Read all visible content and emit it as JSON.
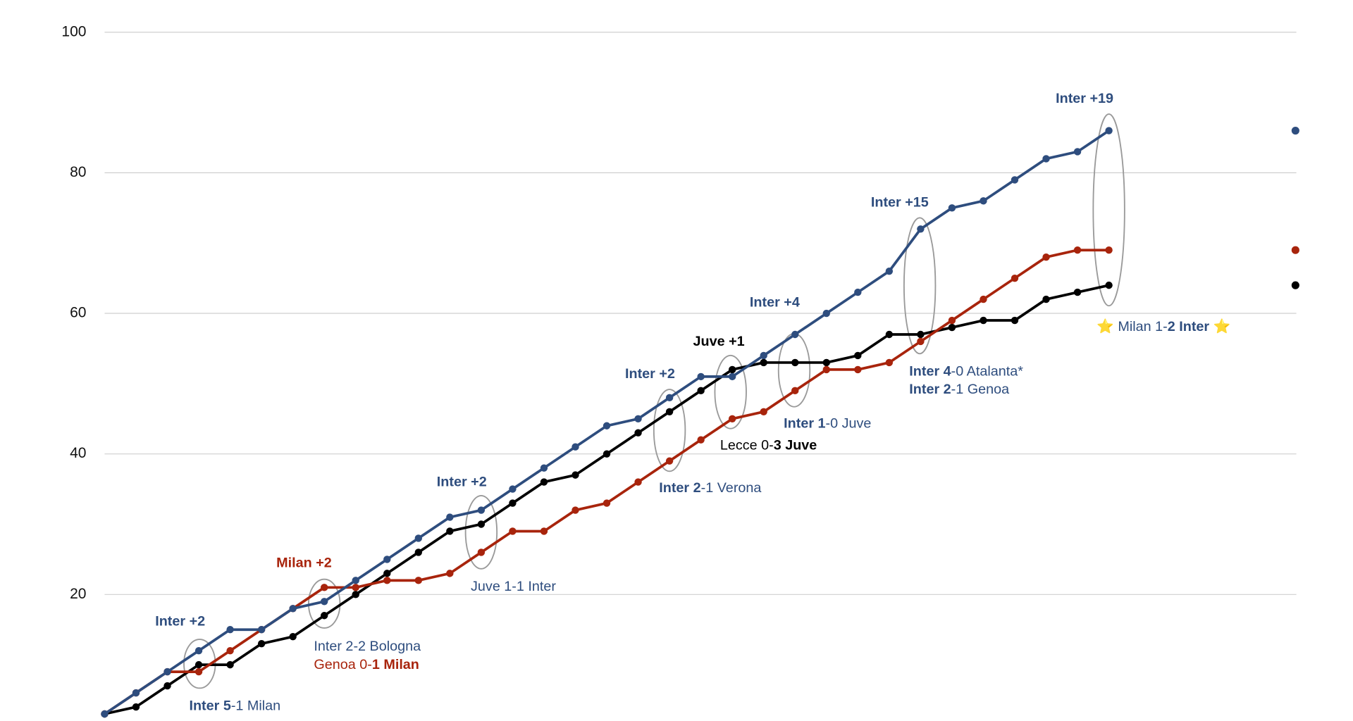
{
  "chart_data": {
    "type": "line",
    "ylim": [
      2,
      100
    ],
    "yticks": [
      20,
      40,
      60,
      80,
      100
    ],
    "grid": true,
    "series": [
      {
        "name": "Inter",
        "color": "#2e4d7e",
        "values": [
          3,
          6,
          9,
          12,
          15,
          15,
          18,
          19,
          22,
          25,
          28,
          31,
          32,
          35,
          38,
          41,
          44,
          45,
          48,
          51,
          51,
          54,
          57,
          60,
          63,
          66,
          72,
          75,
          76,
          79,
          82,
          83,
          86
        ]
      },
      {
        "name": "Milan",
        "color": "#a8240c",
        "values": [
          3,
          6,
          9,
          9,
          12,
          15,
          18,
          21,
          21,
          22,
          22,
          23,
          26,
          29,
          29,
          32,
          33,
          36,
          39,
          42,
          45,
          46,
          49,
          52,
          52,
          53,
          56,
          59,
          62,
          65,
          68,
          69,
          69
        ]
      },
      {
        "name": "Juve",
        "color": "#000000",
        "values": [
          3,
          4,
          7,
          10,
          10,
          13,
          14,
          17,
          20,
          23,
          26,
          29,
          30,
          33,
          36,
          37,
          40,
          43,
          46,
          49,
          52,
          53,
          53,
          53,
          54,
          57,
          57,
          58,
          59,
          59,
          62,
          63,
          64
        ]
      }
    ],
    "annotations": [
      {
        "color": "#2e4d7e",
        "segments": [
          {
            "text": "Inter +2",
            "bold": true
          }
        ]
      },
      {
        "color": "#2e4d7e",
        "segments": [
          {
            "text": "Inter 5",
            "bold": true
          },
          {
            "text": "-1 Milan",
            "bold": false
          }
        ]
      },
      {
        "color": "#a8240c",
        "segments": [
          {
            "text": "Milan +2",
            "bold": true
          }
        ]
      },
      {
        "color": "#2e4d7e",
        "segments": [
          {
            "text": "Inter 2-2 Bologna",
            "bold": false
          }
        ]
      },
      {
        "color": "#a8240c",
        "segments": [
          {
            "text": "Genoa 0-",
            "bold": false
          },
          {
            "text": "1 Milan",
            "bold": true
          }
        ]
      },
      {
        "color": "#2e4d7e",
        "segments": [
          {
            "text": "Inter +2",
            "bold": true
          }
        ]
      },
      {
        "color": "#2e4d7e",
        "segments": [
          {
            "text": "Juve 1-1 Inter",
            "bold": false
          }
        ]
      },
      {
        "color": "#2e4d7e",
        "segments": [
          {
            "text": "Inter +2",
            "bold": true
          }
        ]
      },
      {
        "color": "#2e4d7e",
        "segments": [
          {
            "text": "Inter 2",
            "bold": true
          },
          {
            "text": "-1 Verona",
            "bold": false
          }
        ]
      },
      {
        "color": "#000000",
        "segments": [
          {
            "text": "Juve +1",
            "bold": true
          }
        ]
      },
      {
        "color": "#000000",
        "segments": [
          {
            "text": "Lecce 0-",
            "bold": false
          },
          {
            "text": "3 Juve",
            "bold": true
          }
        ]
      },
      {
        "color": "#2e4d7e",
        "segments": [
          {
            "text": "Inter +4",
            "bold": true
          }
        ]
      },
      {
        "color": "#2e4d7e",
        "segments": [
          {
            "text": "Inter 1",
            "bold": true
          },
          {
            "text": "-0 Juve",
            "bold": false
          }
        ]
      },
      {
        "color": "#2e4d7e",
        "segments": [
          {
            "text": "Inter +15",
            "bold": true
          }
        ]
      },
      {
        "color": "#2e4d7e",
        "segments": [
          {
            "text": "Inter 4",
            "bold": true
          },
          {
            "text": "-0 Atalanta*",
            "bold": false
          }
        ]
      },
      {
        "color": "#2e4d7e",
        "segments": [
          {
            "text": "Inter 2",
            "bold": true
          },
          {
            "text": "-1 Genoa",
            "bold": false
          }
        ]
      },
      {
        "color": "#2e4d7e",
        "segments": [
          {
            "text": "Inter +19",
            "bold": true
          }
        ]
      },
      {
        "color": "#2e4d7e",
        "segments": [
          {
            "text": "⭐ Milan 1-",
            "bold": false
          },
          {
            "text": "2 Inter",
            "bold": true
          },
          {
            "text": " ⭐",
            "bold": false
          }
        ]
      }
    ]
  }
}
